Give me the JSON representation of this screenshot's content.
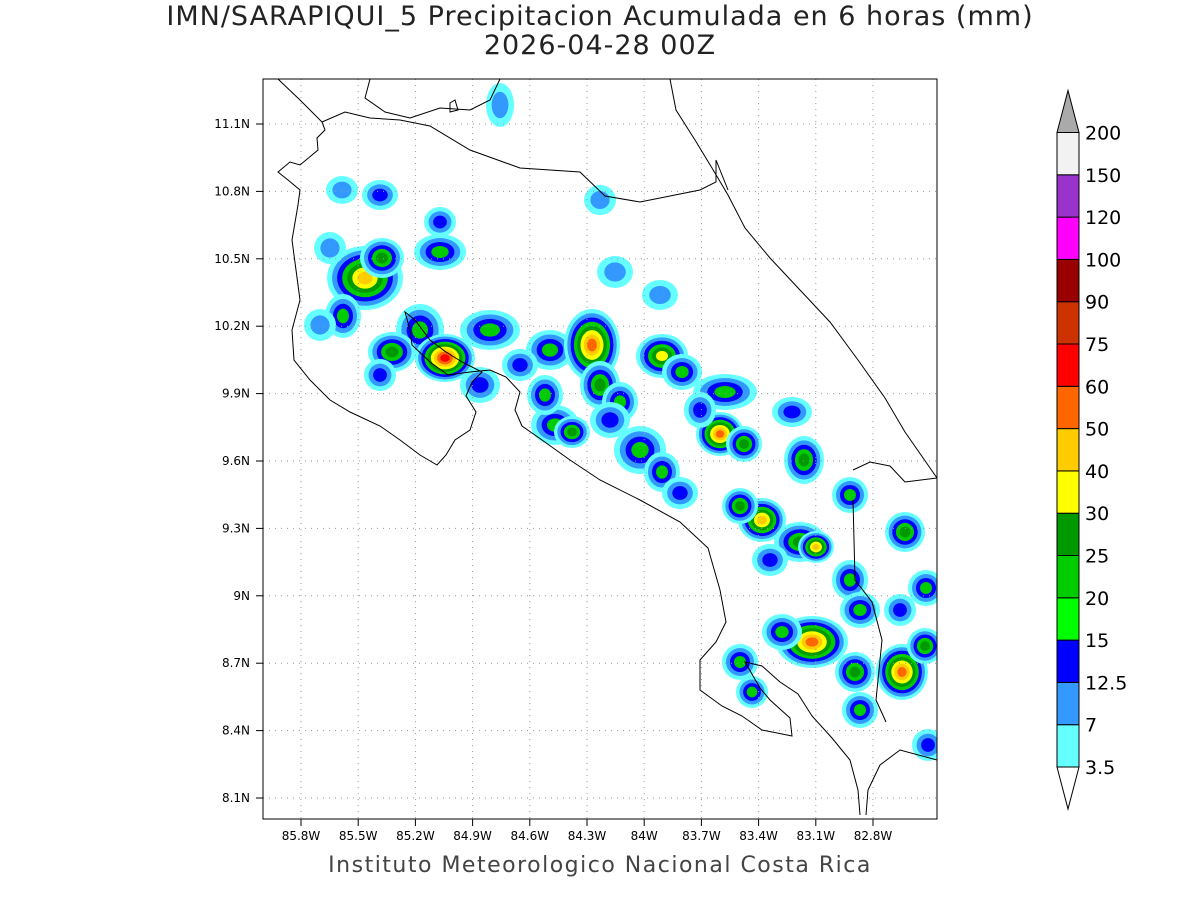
{
  "title": "IMN/SARAPIQUI_5 Precipitacion Acumulada en 6 horas (mm)",
  "subtitle": "2026-04-28 00Z",
  "credit": "Instituto Meteorologico Nacional Costa Rica",
  "lon_ticks": [
    "85.8W",
    "85.5W",
    "85.2W",
    "84.9W",
    "84.6W",
    "84.3W",
    "84W",
    "83.7W",
    "83.4W",
    "83.1W",
    "82.8W"
  ],
  "lat_ticks": [
    "11.1N",
    "10.8N",
    "10.5N",
    "10.2N",
    "9.9N",
    "9.6N",
    "9.3N",
    "9N",
    "8.7N",
    "8.4N",
    "8.1N"
  ],
  "colorbar": {
    "labels": [
      "3.5",
      "7",
      "12.5",
      "15",
      "20",
      "25",
      "30",
      "40",
      "50",
      "60",
      "75",
      "90",
      "100",
      "120",
      "150",
      "200"
    ],
    "colors": [
      "#66ffff",
      "#3399ff",
      "#0000ff",
      "#00ff00",
      "#00cc00",
      "#009900",
      "#ffff00",
      "#ffcc00",
      "#ff6600",
      "#ff0000",
      "#cc3300",
      "#990000",
      "#ff00ff",
      "#9933cc",
      "#f2f2f2"
    ],
    "over_color": "#aaaaaa",
    "under_color": "#ffffff"
  }
}
